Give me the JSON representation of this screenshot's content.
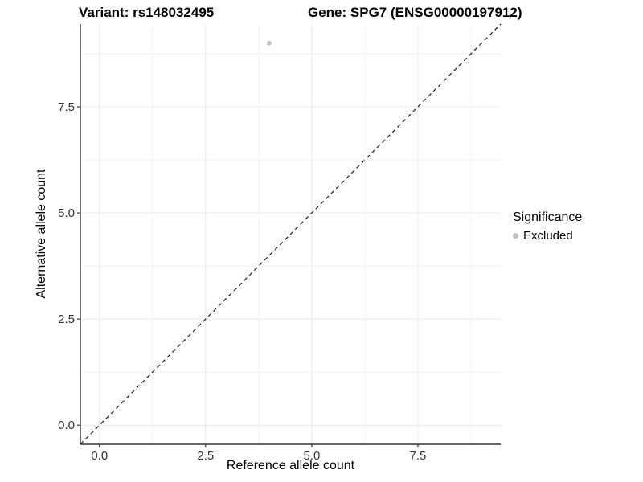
{
  "chart_data": {
    "type": "scatter",
    "title_left": "Variant: rs148032495",
    "title_right": "Gene: SPG7 (ENSG00000197912)",
    "xlabel": "Reference allele count",
    "ylabel": "Alternative allele count",
    "xlim": [
      -0.45,
      9.45
    ],
    "ylim": [
      -0.45,
      9.45
    ],
    "x_ticks": [
      {
        "v": 0,
        "label": "0.0"
      },
      {
        "v": 2.5,
        "label": "2.5"
      },
      {
        "v": 5,
        "label": "5.0"
      },
      {
        "v": 7.5,
        "label": "7.5"
      }
    ],
    "y_ticks": [
      {
        "v": 0,
        "label": "0.0"
      },
      {
        "v": 2.5,
        "label": "2.5"
      },
      {
        "v": 5,
        "label": "5.0"
      },
      {
        "v": 7.5,
        "label": "7.5"
      }
    ],
    "minor_ticks": [
      1.25,
      3.75,
      6.25,
      8.75
    ],
    "grid": "on",
    "points": [
      {
        "x": 4,
        "y": 9,
        "series": "Excluded"
      }
    ],
    "reference_line": {
      "slope": 1,
      "intercept": 0,
      "style": "dashed"
    },
    "legend": {
      "title": "Significance",
      "position": "right",
      "items": [
        {
          "label": "Excluded",
          "color": "#bebebe"
        }
      ]
    },
    "colors": {
      "point": "#c3c3c3",
      "grid_major": "#e8e8e8",
      "grid_minor": "#f2f2f2",
      "axis_line": "#333333",
      "tick_mark": "#333333",
      "tick_text": "#333333",
      "dashed_line": "#1a1a1a"
    }
  }
}
